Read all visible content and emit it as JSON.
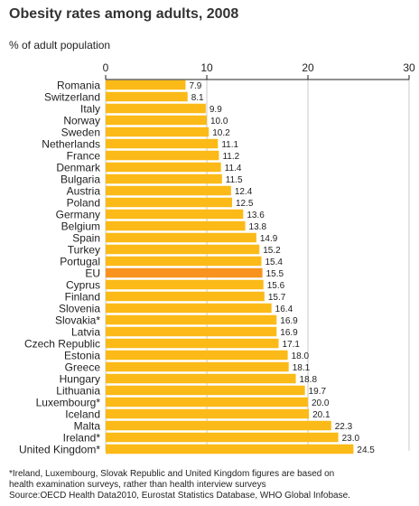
{
  "page": {
    "title": "Obesity rates among adults, 2008",
    "subtitle": "% of adult population",
    "footnote_line1": "*Ireland, Luxembourg, Slovak Republic and United Kingdom figures are based on",
    "footnote_line2": "health examination surveys, rather than health interview surveys",
    "source": "Source:OECD Health Data2010, Eurostat Statistics Database, WHO Global Infobase."
  },
  "colors": {
    "bar": "#fbba17",
    "highlight": "#f7931e",
    "grid": "#c8c8c8",
    "axis": "#222222"
  },
  "chart_data": {
    "type": "bar",
    "orientation": "horizontal",
    "title": "Obesity rates among adults, 2008",
    "xlabel": "% of adult population",
    "xlim": [
      0,
      30
    ],
    "ticks": [
      0,
      10,
      20,
      30
    ],
    "highlight": "EU",
    "categories": [
      "Romania",
      "Switzerland",
      "Italy",
      "Norway",
      "Sweden",
      "Netherlands",
      "France",
      "Denmark",
      "Bulgaria",
      "Austria",
      "Poland",
      "Germany",
      "Belgium",
      "Spain",
      "Turkey",
      "Portugal",
      "EU",
      "Cyprus",
      "Finland",
      "Slovenia",
      "Slovakia*",
      "Latvia",
      "Czech Republic",
      "Estonia",
      "Greece",
      "Hungary",
      "Lithuania",
      "Luxembourg*",
      "Iceland",
      "Malta",
      "Ireland*",
      "United Kingdom*"
    ],
    "values": [
      7.9,
      8.1,
      9.9,
      10.0,
      10.2,
      11.1,
      11.2,
      11.4,
      11.5,
      12.4,
      12.5,
      13.6,
      13.8,
      14.9,
      15.2,
      15.4,
      15.5,
      15.6,
      15.7,
      16.4,
      16.9,
      16.9,
      17.1,
      18.0,
      18.1,
      18.8,
      19.7,
      20.0,
      20.1,
      22.3,
      23.0,
      24.5
    ],
    "value_labels": [
      "7.9",
      "8.1",
      "9.9",
      "10.0",
      "10.2",
      "11.1",
      "11.2",
      "11.4",
      "11.5",
      "12.4",
      "12.5",
      "13.6",
      "13.8",
      "14.9",
      "15.2",
      "15.4",
      "15.5",
      "15.6",
      "15.7",
      "16.4",
      "16.9",
      "16.9",
      "17.1",
      "18.0",
      "18.1",
      "18.8",
      "19.7",
      "20.0",
      "20.1",
      "22.3",
      "23.0",
      "24.5"
    ],
    "grid": true,
    "legend": false
  }
}
